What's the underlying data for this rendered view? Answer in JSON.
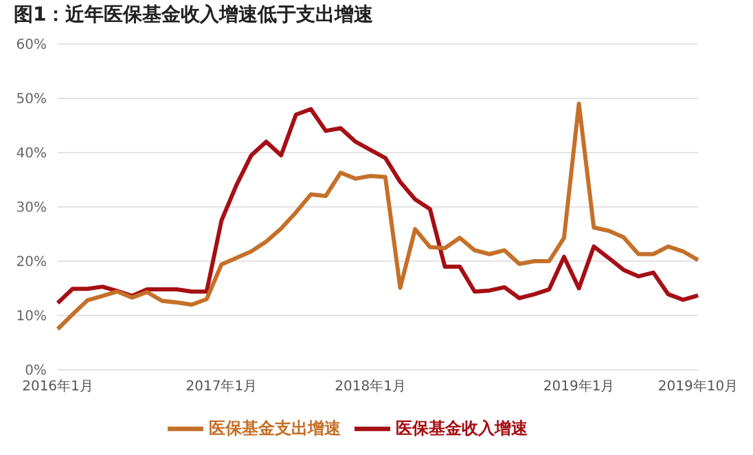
{
  "chart_data": {
    "type": "line",
    "title": "图1：近年医保基金收入增速低于支出增速",
    "categories": [
      "2016年1月",
      null,
      null,
      null,
      null,
      null,
      null,
      null,
      null,
      null,
      null,
      "2017年1月",
      null,
      null,
      null,
      null,
      null,
      null,
      null,
      null,
      null,
      "2018年1月",
      null,
      null,
      null,
      null,
      null,
      null,
      null,
      null,
      null,
      null,
      null,
      null,
      null,
      "2019年1月",
      null,
      null,
      null,
      null,
      null,
      null,
      null,
      "2019年10月"
    ],
    "series": [
      {
        "name": "医保基金收入增速",
        "color": "#a50f15",
        "values": [
          12.3,
          14.9,
          14.9,
          15.3,
          14.5,
          13.6,
          14.8,
          14.8,
          14.8,
          14.4,
          14.4,
          27.5,
          34,
          39.5,
          42,
          39.5,
          47,
          48,
          44,
          44.5,
          42,
          40.5,
          39,
          34.6,
          31.4,
          29.6,
          19,
          19,
          14.4,
          14.6,
          15.2,
          13.2,
          13.9,
          14.8,
          20.8,
          15,
          22.7,
          20.6,
          18.4,
          17.2,
          17.9,
          13.9,
          12.9,
          13.7
        ]
      },
      {
        "name": "医保基金支出增速",
        "color": "#c5702a",
        "values": [
          7.5,
          10.2,
          12.8,
          13.6,
          14.4,
          13.3,
          14.3,
          12.7,
          12.4,
          12,
          13,
          19.4,
          20.6,
          21.8,
          23.6,
          26,
          29,
          32.3,
          32,
          36.3,
          35.2,
          35.7,
          35.5,
          15.1,
          25.9,
          22.6,
          22.4,
          24.3,
          22,
          21.3,
          22,
          19.5,
          20,
          20,
          24.3,
          49,
          26.2,
          25.6,
          24.4,
          21.3,
          21.3,
          22.7,
          21.8,
          20.2
        ]
      }
    ],
    "ylim": [
      0,
      60
    ],
    "yticks": [
      {
        "value": 0,
        "label": "0%"
      },
      {
        "value": 10,
        "label": "10%"
      },
      {
        "value": 20,
        "label": "20%"
      },
      {
        "value": 30,
        "label": "30%"
      },
      {
        "value": 40,
        "label": "40%"
      },
      {
        "value": 50,
        "label": "50%"
      },
      {
        "value": 60,
        "label": "60%"
      }
    ],
    "grid": "y",
    "legend": "bottom",
    "marker": "none",
    "line_style": "solid"
  }
}
